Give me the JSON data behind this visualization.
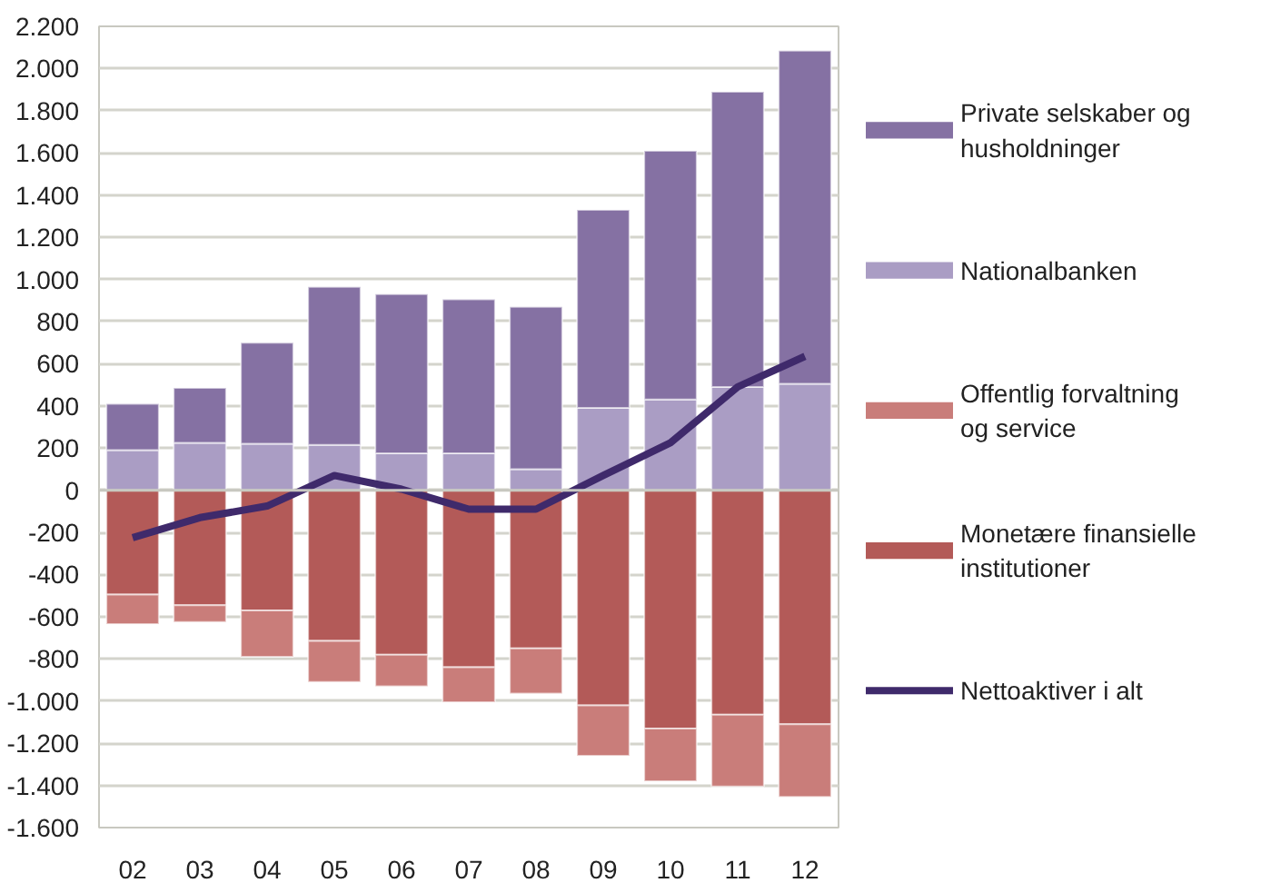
{
  "chart_data": {
    "type": "bar",
    "stacked": true,
    "categories": [
      "02",
      "03",
      "04",
      "05",
      "06",
      "07",
      "08",
      "09",
      "10",
      "11",
      "12"
    ],
    "series": [
      {
        "name": "Nationalbanken",
        "color": "#aa9dc4",
        "values": [
          190,
          225,
          220,
          215,
          175,
          175,
          100,
          390,
          430,
          490,
          505
        ]
      },
      {
        "name": "Private selskaber og husholdninger",
        "color": "#8571a3",
        "values": [
          220,
          260,
          480,
          750,
          755,
          730,
          770,
          940,
          1180,
          1400,
          1580
        ]
      },
      {
        "name": "Monetære finansielle institutioner",
        "color": "#b35a58",
        "values": [
          -495,
          -545,
          -570,
          -715,
          -780,
          -840,
          -750,
          -1020,
          -1130,
          -1065,
          -1110
        ]
      },
      {
        "name": "Offentlig forvaltning og service",
        "color": "#c97d7a",
        "values": [
          -140,
          -80,
          -220,
          -195,
          -150,
          -165,
          -215,
          -240,
          -250,
          -340,
          -345
        ]
      },
      {
        "name": "Nettoaktiver i alt",
        "type": "line",
        "color": "#3f2a6b",
        "values": [
          -225,
          -130,
          -75,
          70,
          5,
          -90,
          -90,
          70,
          225,
          490,
          635
        ]
      }
    ],
    "ylim": [
      -1600,
      2200
    ],
    "yticks": [
      {
        "value": -1600,
        "label": "-1.600"
      },
      {
        "value": -1400,
        "label": "-1.400"
      },
      {
        "value": -1200,
        "label": "-1.200"
      },
      {
        "value": -1000,
        "label": "-1.000"
      },
      -800,
      -600,
      -400,
      -200,
      0,
      200,
      400,
      600,
      800,
      {
        "value": 1000,
        "label": "1.000"
      },
      {
        "value": 1200,
        "label": "1.200"
      },
      {
        "value": 1400,
        "label": "1.400"
      },
      {
        "value": 1600,
        "label": "1.600"
      },
      {
        "value": 1800,
        "label": "1.800"
      },
      {
        "value": 2000,
        "label": "2.000"
      },
      {
        "value": 2200,
        "label": "2.200"
      }
    ],
    "grid": "y",
    "legend": "right",
    "marker": "none",
    "line_style": "solid"
  }
}
